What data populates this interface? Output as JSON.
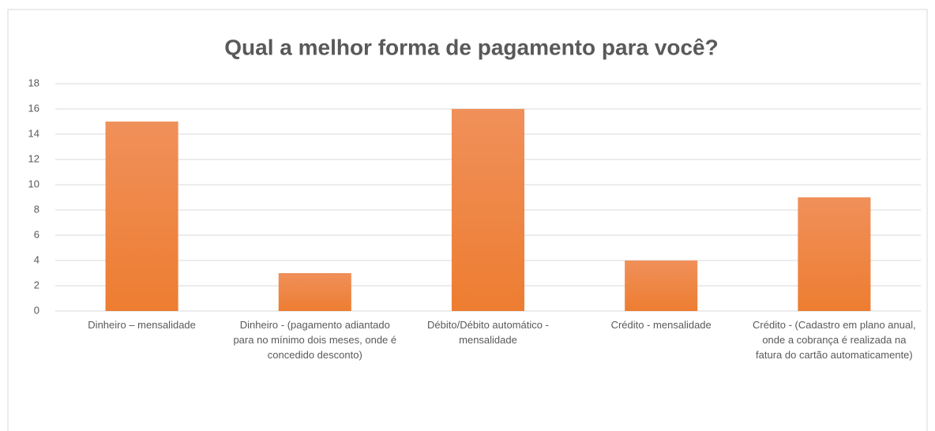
{
  "chart_data": {
    "type": "bar",
    "title": "Qual a melhor forma de pagamento para você?",
    "categories": [
      "Dinheiro – mensalidade",
      "Dinheiro - (pagamento adiantado para no mínimo dois meses, onde é concedido desconto)",
      "Débito/Débito automático - mensalidade",
      "Crédito  - mensalidade",
      "Crédito  - (Cadastro em plano anual, onde a cobrança é realizada na fatura do cartão automaticamente)"
    ],
    "values": [
      15,
      3,
      16,
      4,
      9
    ],
    "color": "#ed7d31",
    "ylim": [
      0,
      18
    ],
    "yticks": [
      0,
      2,
      4,
      6,
      8,
      10,
      12,
      14,
      16,
      18
    ],
    "grid": true
  }
}
